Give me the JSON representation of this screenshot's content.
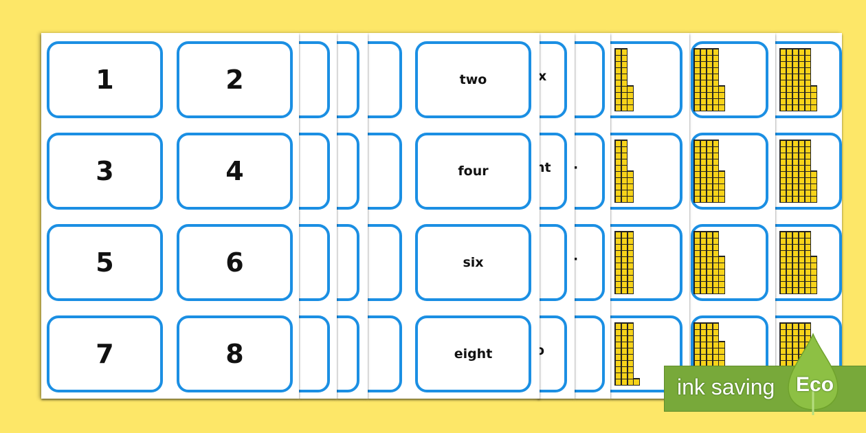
{
  "numbers": [
    "1",
    "2",
    "3",
    "4",
    "5",
    "6",
    "7",
    "8"
  ],
  "words": [
    "two",
    "four",
    "six",
    "eight"
  ],
  "partial_words_sheet_d": [
    "x",
    "ht",
    "",
    "o"
  ],
  "partial_words_sheet_e": [
    "",
    "·",
    "·",
    ""
  ],
  "block_cards": [
    {
      "sheet": "f",
      "rows": [
        {
          "tens": 2,
          "ones": 4
        },
        {
          "tens": 2,
          "ones": 5
        },
        {
          "tens": 3,
          "ones": 0
        },
        {
          "tens": 3,
          "ones": 1
        }
      ]
    },
    {
      "sheet": "g",
      "rows": [
        {
          "tens": 4,
          "ones": 4
        },
        {
          "tens": 4,
          "ones": 5
        },
        {
          "tens": 4,
          "ones": 6
        },
        {
          "tens": 4,
          "ones": 7
        }
      ]
    },
    {
      "sheet": "h",
      "rows": [
        {
          "tens": 5,
          "ones": 4
        },
        {
          "tens": 5,
          "ones": 5
        },
        {
          "tens": 5,
          "ones": 6
        },
        {
          "tens": 5,
          "ones": 7
        }
      ]
    }
  ],
  "badge": {
    "text": "ink saving",
    "label": "Eco",
    "icon": "leaf-icon"
  },
  "colors": {
    "background": "#fde768",
    "card_border": "#1b8fe3",
    "cube": "#f7d31a",
    "badge": "#78a93a",
    "leaf": "#8dc044"
  }
}
